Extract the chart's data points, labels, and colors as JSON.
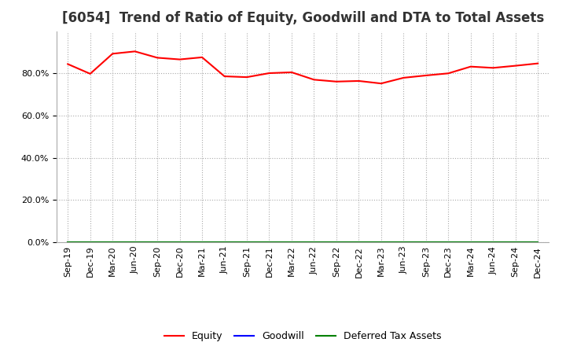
{
  "title": "[6054]  Trend of Ratio of Equity, Goodwill and DTA to Total Assets",
  "x_labels": [
    "Sep-19",
    "Dec-19",
    "Mar-20",
    "Jun-20",
    "Sep-20",
    "Dec-20",
    "Mar-21",
    "Jun-21",
    "Sep-21",
    "Dec-21",
    "Mar-22",
    "Jun-22",
    "Sep-22",
    "Dec-22",
    "Mar-23",
    "Jun-23",
    "Sep-23",
    "Dec-23",
    "Mar-24",
    "Jun-24",
    "Sep-24",
    "Dec-24"
  ],
  "equity": [
    0.844,
    0.798,
    0.893,
    0.904,
    0.874,
    0.866,
    0.876,
    0.786,
    0.782,
    0.801,
    0.805,
    0.77,
    0.761,
    0.764,
    0.752,
    0.779,
    0.79,
    0.8,
    0.832,
    0.826,
    0.836,
    0.847
  ],
  "goodwill": [
    0.0,
    0.0,
    0.0,
    0.0,
    0.0,
    0.0,
    0.0,
    0.0,
    0.0,
    0.0,
    0.0,
    0.0,
    0.0,
    0.0,
    0.0,
    0.0,
    0.0,
    0.0,
    0.0,
    0.0,
    0.0,
    0.0
  ],
  "dta": [
    0.0,
    0.0,
    0.0,
    0.0,
    0.0,
    0.0,
    0.0,
    0.0,
    0.0,
    0.0,
    0.0,
    0.0,
    0.0,
    0.0,
    0.0,
    0.0,
    0.0,
    0.0,
    0.0,
    0.0,
    0.0,
    0.0
  ],
  "equity_color": "#FF0000",
  "goodwill_color": "#0000FF",
  "dta_color": "#008000",
  "ylim": [
    0.0,
    1.0
  ],
  "yticks": [
    0.0,
    0.2,
    0.4,
    0.6,
    0.8
  ],
  "background_color": "#FFFFFF",
  "plot_bg_color": "#FFFFFF",
  "grid_color": "#AAAAAA",
  "title_fontsize": 12,
  "tick_fontsize": 8,
  "legend_labels": [
    "Equity",
    "Goodwill",
    "Deferred Tax Assets"
  ]
}
